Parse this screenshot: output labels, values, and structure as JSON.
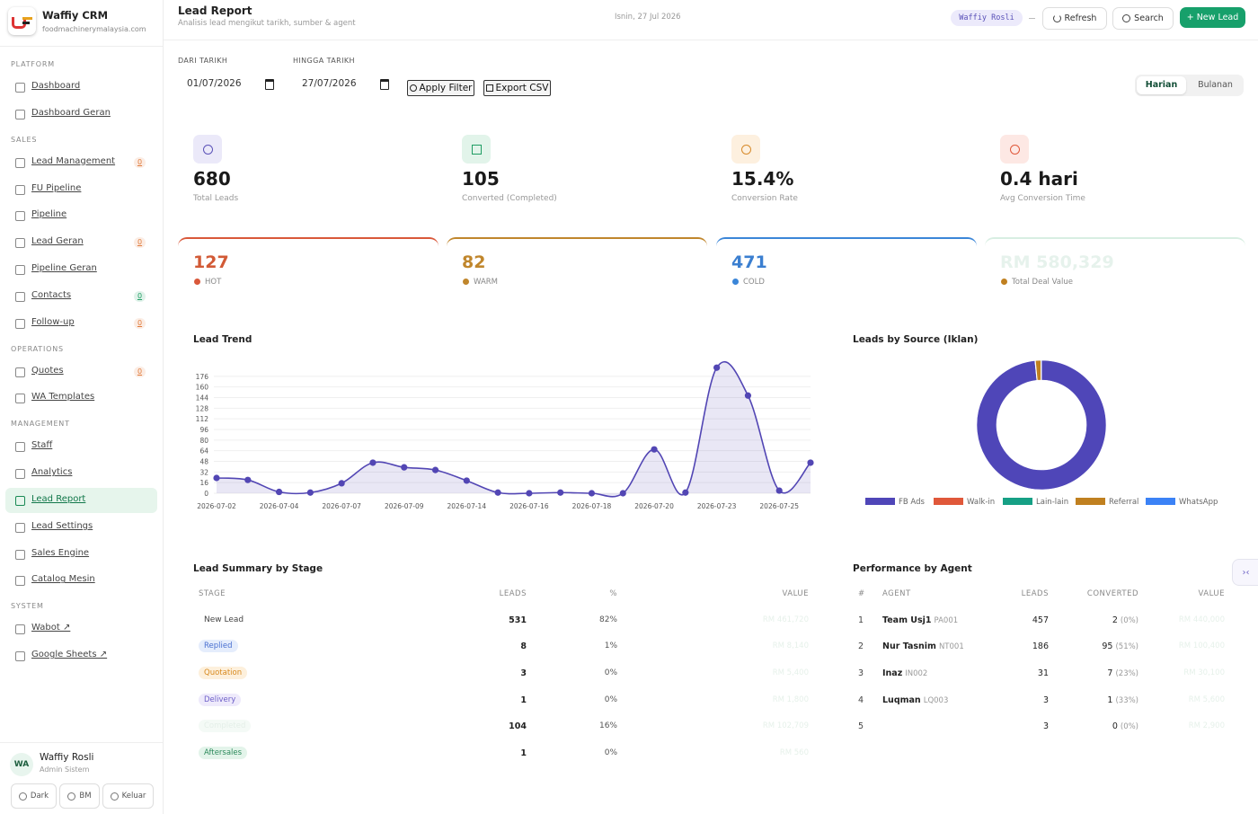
{
  "sidebar": {
    "brand": "Waffiy CRM",
    "domain": "foodmachinerymalaysia.com",
    "sections": [
      {
        "label": "PLATFORM",
        "items": [
          {
            "label": "Dashboard"
          },
          {
            "label": "Dashboard Geran"
          }
        ]
      },
      {
        "label": "SALES",
        "items": [
          {
            "label": "Lead Management",
            "badge": 0,
            "badge_color": "#e07a3a"
          },
          {
            "label": "FU Pipeline"
          },
          {
            "label": "Pipeline"
          },
          {
            "label": "Lead Geran",
            "badge": 0,
            "badge_color": "#e07a3a"
          },
          {
            "label": "Pipeline Geran"
          },
          {
            "label": "Contacts",
            "badge": 0,
            "badge_color": "#1f9d63"
          },
          {
            "label": "Follow-up",
            "badge": 0,
            "badge_color": "#e07a3a"
          }
        ]
      },
      {
        "label": "OPERATIONS",
        "items": [
          {
            "label": "Quotes",
            "badge": 0,
            "badge_color": "#e07a3a"
          },
          {
            "label": "WA Templates"
          }
        ]
      },
      {
        "label": "MANAGEMENT",
        "items": [
          {
            "label": "Staff"
          },
          {
            "label": "Analytics"
          },
          {
            "label": "Lead Report",
            "active": true
          },
          {
            "label": "Lead Settings"
          },
          {
            "label": "Sales Engine"
          },
          {
            "label": "Catalog Mesin"
          }
        ]
      },
      {
        "label": "SYSTEM",
        "items": [
          {
            "label": "Wabot ↗"
          },
          {
            "label": "Google Sheets ↗"
          }
        ]
      }
    ],
    "user": {
      "initials": "WA",
      "name": "Waffiy Rosli",
      "role": "Admin Sistem"
    },
    "buttons": [
      "Dark",
      "BM",
      "Keluar"
    ]
  },
  "header": {
    "title": "Lead Report",
    "subtitle": "Analisis lead mengikut tarikh, sumber & agent",
    "date": "Isnin, 27 Jul 2026",
    "user_tag": "Waffiy Rosli",
    "refresh": "Refresh",
    "search": "Search",
    "new_lead": "+ New Lead"
  },
  "filters": {
    "from_label": "DARI TARIKH",
    "from": "01/07/2026",
    "to_label": "HINGGA TARIKH",
    "to": "27/07/2026",
    "apply": "Apply Filter",
    "export": "Export CSV",
    "toggle": [
      "Harian",
      "Bulanan"
    ]
  },
  "kpis": [
    {
      "value": 680,
      "label": "Total Leads"
    },
    {
      "value": 105,
      "label": "Converted (Completed)"
    },
    {
      "value": "15.4%",
      "label": "Conversion Rate"
    },
    {
      "value": "0.4 hari",
      "label": "Avg Conversion Time"
    }
  ],
  "temperature": [
    {
      "value": 127,
      "label": "HOT"
    },
    {
      "value": 82,
      "label": "WARM"
    },
    {
      "value": 471,
      "label": "COLD"
    },
    {
      "value": "RM 580,329",
      "label": "Total Deal Value"
    }
  ],
  "chart_data": [
    {
      "type": "line",
      "title": "Lead Trend",
      "categories": [
        "2026-07-02",
        null,
        "2026-07-04",
        null,
        "2026-07-07",
        null,
        "2026-07-09",
        null,
        "2026-07-14",
        null,
        "2026-07-16",
        null,
        "2026-07-18",
        null,
        "2026-07-20",
        null,
        "2026-07-23",
        null,
        "2026-07-25",
        null
      ],
      "values": [
        23,
        20,
        2,
        1,
        15,
        46,
        39,
        35,
        19,
        1,
        0,
        1,
        0,
        0,
        66,
        1,
        189,
        147,
        4,
        46
      ],
      "color": "#5246b4",
      "ylim": [
        0,
        192
      ],
      "yticks": [
        0,
        16,
        32,
        48,
        64,
        80,
        96,
        112,
        128,
        144,
        160,
        176
      ],
      "grid": true
    },
    {
      "type": "pie",
      "title": "Leads by Source (Iklan)",
      "categories": [
        "FB Ads",
        "Walk-in",
        "Lain-lain",
        "Referral",
        "WhatsApp"
      ],
      "values": [
        669,
        1,
        0,
        9,
        1
      ],
      "colors": [
        "#4f46b8",
        "#e0583a",
        "#16a085",
        "#c08020",
        "#3b82f6"
      ],
      "legend": "bottom"
    }
  ],
  "stage_table": {
    "title": "Lead Summary by Stage",
    "columns": [
      "STAGE",
      "LEADS",
      "%",
      "VALUE"
    ],
    "rows": [
      {
        "stage": "New Lead",
        "leads": 531,
        "pct": "82%",
        "value": "RM 461,720"
      },
      {
        "stage": "Replied",
        "leads": 8,
        "pct": "1%",
        "value": "RM 8,140"
      },
      {
        "stage": "Quotation",
        "leads": 3,
        "pct": "0%",
        "value": "RM 5,400"
      },
      {
        "stage": "Delivery",
        "leads": 1,
        "pct": "0%",
        "value": "RM 1,800"
      },
      {
        "stage": "Completed",
        "leads": 104,
        "pct": "16%",
        "value": "RM 102,709"
      },
      {
        "stage": "Aftersales",
        "leads": 1,
        "pct": "0%",
        "value": "RM 560"
      }
    ]
  },
  "agent_table": {
    "title": "Performance by Agent",
    "columns": [
      "#",
      "AGENT",
      "LEADS",
      "CONVERTED",
      "VALUE"
    ],
    "rows": [
      {
        "rank": 1,
        "name": "Team Usj1",
        "code": "PA001",
        "leads": 457,
        "converted": 2,
        "rate": "(0%)",
        "value": "RM 440,000"
      },
      {
        "rank": 2,
        "name": "Nur Tasnim",
        "code": "NT001",
        "leads": 186,
        "converted": 95,
        "rate": "(51%)",
        "value": "RM 100,400"
      },
      {
        "rank": 3,
        "name": "Inaz",
        "code": "IN002",
        "leads": 31,
        "converted": 7,
        "rate": "(23%)",
        "value": "RM 30,100"
      },
      {
        "rank": 4,
        "name": "Luqman",
        "code": "LQ003",
        "leads": 3,
        "converted": 1,
        "rate": "(33%)",
        "value": "RM 5,600"
      },
      {
        "rank": 5,
        "leads": 3,
        "converted": 0,
        "rate": "(0%)",
        "value": "RM 2,900"
      }
    ]
  }
}
